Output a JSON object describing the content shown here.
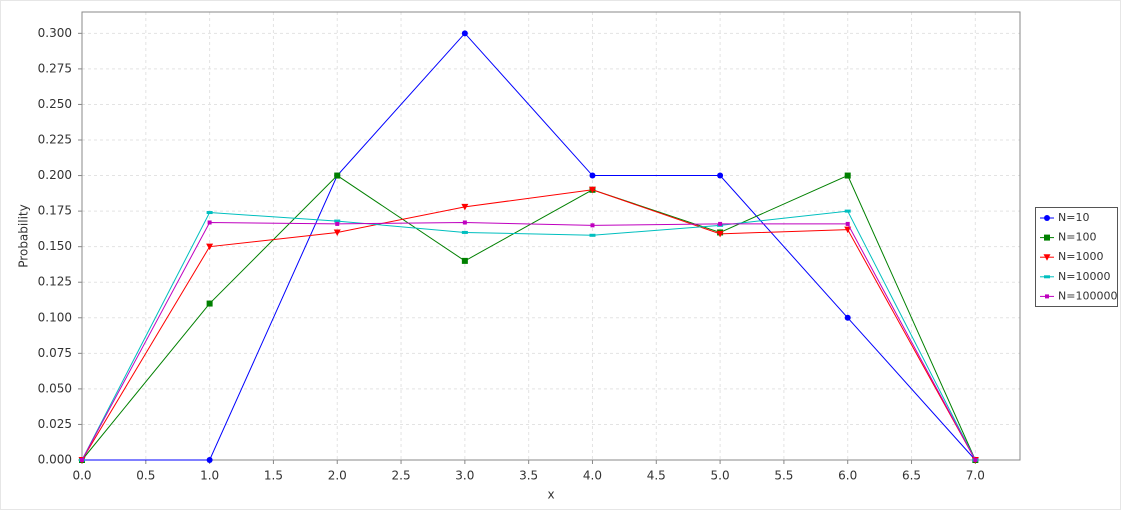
{
  "chart_data": {
    "type": "line",
    "x_label": "x",
    "y_label": "Probability",
    "x": [
      0,
      1,
      2,
      3,
      4,
      5,
      6,
      7
    ],
    "series": [
      {
        "name": "N=10",
        "color": "#0000ff",
        "marker": "circle",
        "values": [
          0,
          0,
          0.2,
          0.3,
          0.2,
          0.2,
          0.1,
          0
        ]
      },
      {
        "name": "N=100",
        "color": "#008000",
        "marker": "square",
        "values": [
          0,
          0.11,
          0.2,
          0.14,
          0.19,
          0.16,
          0.2,
          0
        ]
      },
      {
        "name": "N=1000",
        "color": "#ff0000",
        "marker": "triangle-down",
        "values": [
          0,
          0.15,
          0.16,
          0.178,
          0.19,
          0.159,
          0.162,
          0
        ]
      },
      {
        "name": "N=10000",
        "color": "#00bfbf",
        "marker": "flat-rect",
        "values": [
          0,
          0.174,
          0.168,
          0.16,
          0.158,
          0.165,
          0.175,
          0
        ]
      },
      {
        "name": "N=100000",
        "color": "#bf00bf",
        "marker": "small-square",
        "values": [
          0,
          0.167,
          0.166,
          0.167,
          0.165,
          0.166,
          0.166,
          0
        ]
      }
    ],
    "xlim": [
      0,
      7.35
    ],
    "ylim": [
      0,
      0.315
    ],
    "xticks": [
      {
        "value": 0,
        "label": "0.0"
      },
      0.5,
      {
        "value": 1,
        "label": "1.0"
      },
      1.5,
      {
        "value": 2,
        "label": "2.0"
      },
      2.5,
      {
        "value": 3,
        "label": "3.0"
      },
      3.5,
      {
        "value": 4,
        "label": "4.0"
      },
      4.5,
      {
        "value": 5,
        "label": "5.0"
      },
      5.5,
      {
        "value": 6,
        "label": "6.0"
      },
      6.5,
      {
        "value": 7,
        "label": "7.0"
      }
    ],
    "yticks": [
      {
        "value": 0,
        "label": "0.000"
      },
      0.025,
      {
        "value": 0.05,
        "label": "0.050"
      },
      0.075,
      {
        "value": 0.1,
        "label": "0.100"
      },
      0.125,
      {
        "value": 0.15,
        "label": "0.150"
      },
      0.175,
      {
        "value": 0.2,
        "label": "0.200"
      },
      0.225,
      {
        "value": 0.25,
        "label": "0.250"
      },
      0.275,
      {
        "value": 0.3,
        "label": "0.300"
      }
    ],
    "grid": true,
    "legend": "right"
  }
}
